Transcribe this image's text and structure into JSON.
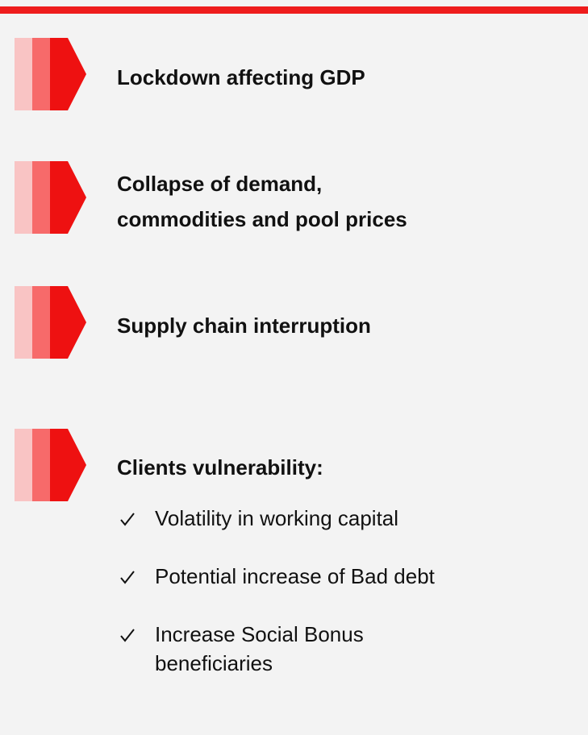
{
  "items": [
    {
      "title": [
        "Lockdown affecting GDP"
      ]
    },
    {
      "title": [
        "Collapse of demand,",
        "commodities and pool prices"
      ]
    },
    {
      "title": [
        "Supply chain interruption"
      ]
    },
    {
      "title": [
        "Clients vulnerability:"
      ],
      "bullets": [
        [
          "Volatility in working capital"
        ],
        [
          "Potential increase of Bad debt"
        ],
        [
          "Increase Social Bonus",
          "beneficiaries"
        ]
      ]
    }
  ]
}
